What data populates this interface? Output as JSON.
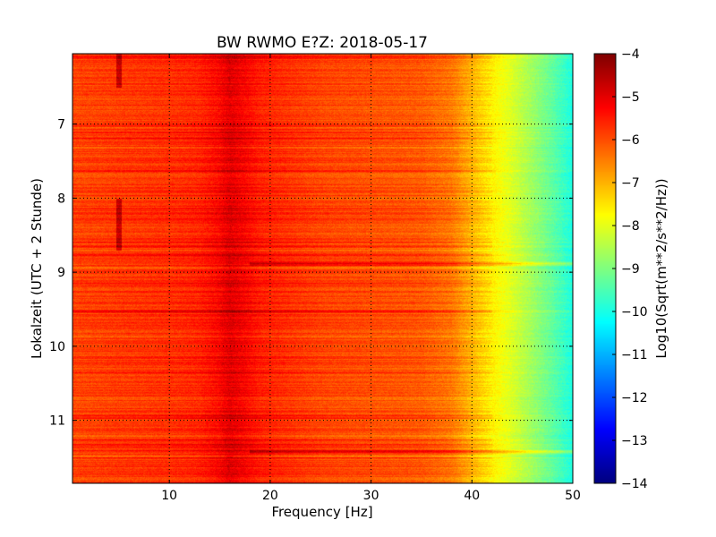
{
  "chart_data": {
    "type": "heatmap",
    "title": "BW RWMO E?Z: 2018-05-17",
    "xlabel": "Frequency [Hz]",
    "ylabel": "Lokalzeit (UTC + 2 Stunde)",
    "xlim": [
      0.4,
      50
    ],
    "ylim": [
      11.85,
      6.05
    ],
    "x_ticks": [
      10,
      20,
      30,
      40,
      50
    ],
    "y_ticks": [
      7,
      8,
      9,
      10,
      11
    ],
    "grid": true,
    "colormap": "jet",
    "colorbar": {
      "label": "Log10(Sqrt(m**2/s**2/Hz))",
      "vmin": -14,
      "vmax": -4,
      "ticks": [
        -4,
        -5,
        -6,
        -7,
        -8,
        -9,
        -10,
        -11,
        -12,
        -13,
        -14
      ]
    },
    "spectrum_profile": {
      "frequency_hz": [
        0.4,
        5,
        10,
        15,
        16,
        20,
        25,
        30,
        35,
        38,
        40,
        42,
        44,
        46,
        48,
        50
      ],
      "log10_amplitude": [
        -5.9,
        -5.8,
        -5.7,
        -5.5,
        -5.3,
        -5.6,
        -5.9,
        -6.0,
        -6.1,
        -6.4,
        -7.0,
        -7.6,
        -8.1,
        -8.7,
        -9.3,
        -10.0
      ]
    },
    "notable_features": [
      {
        "label": "narrowband line",
        "frequency_hz": 5,
        "time_range": [
          6.05,
          6.5
        ]
      },
      {
        "label": "narrowband line",
        "frequency_hz": 5,
        "time_range": [
          8.0,
          8.7
        ]
      },
      {
        "label": "broadband band",
        "time": 8.88,
        "frequency_range": [
          18,
          50
        ]
      },
      {
        "label": "broadband band",
        "time": 11.42,
        "frequency_range": [
          18,
          50
        ]
      },
      {
        "label": "energy cluster",
        "frequency_hz": 16,
        "time_range": [
          6.05,
          11.85
        ]
      }
    ]
  }
}
